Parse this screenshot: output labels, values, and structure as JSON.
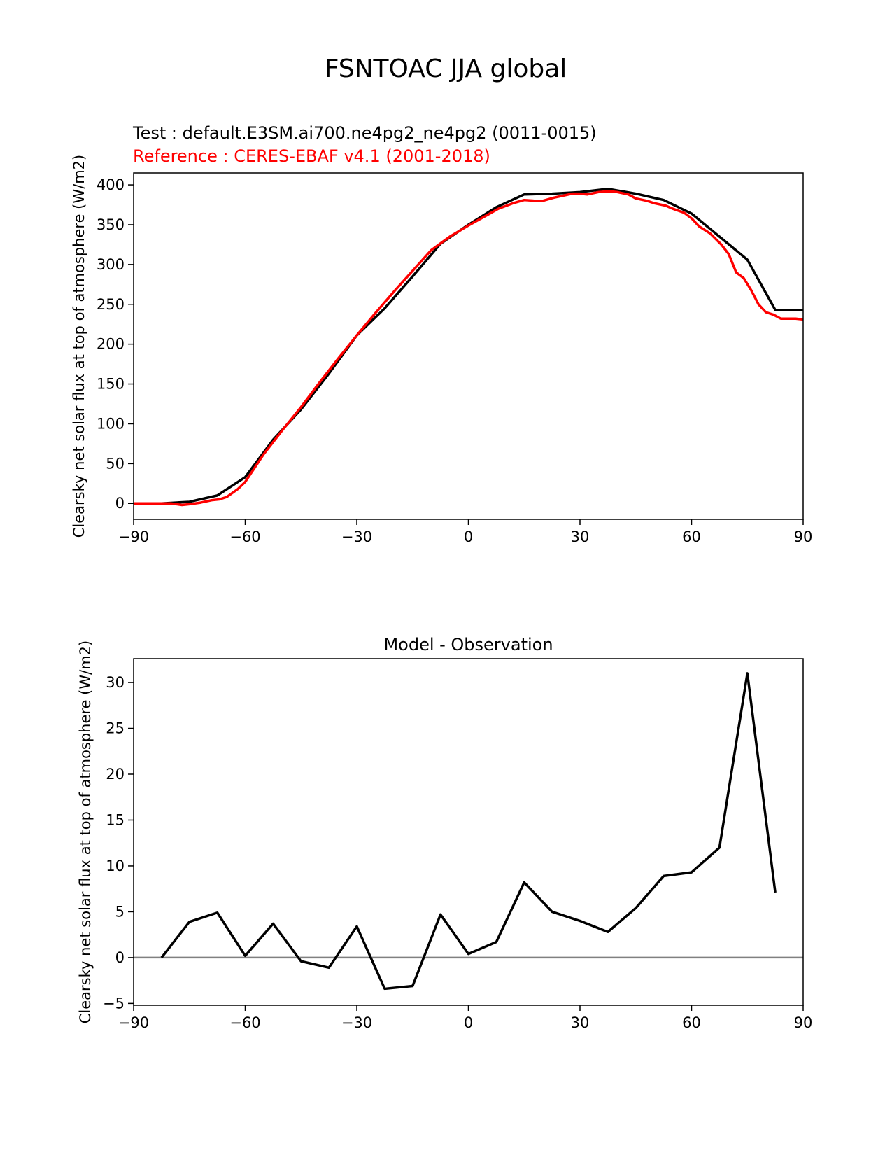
{
  "figure": {
    "title": "FSNTOAC JJA global",
    "test_label": "Test : default.E3SM.ai700.ne4pg2_ne4pg2 (0011-0015)",
    "reference_label": "Reference : CERES-EBAF v4.1 (2001-2018)"
  },
  "colors": {
    "test": "#000000",
    "reference": "#ff0000",
    "zero_line": "#808080"
  },
  "chart_data": [
    {
      "type": "line",
      "title": "",
      "xlabel": "",
      "ylabel": "Clearsky net solar flux at top of atmosphere (W/m2)",
      "xlim": [
        -90,
        90
      ],
      "ylim": [
        -20,
        415
      ],
      "xticks": [
        -90,
        -60,
        -30,
        0,
        30,
        60,
        90
      ],
      "xtick_labels": [
        "−90",
        "−60",
        "−30",
        "0",
        "30",
        "60",
        "90"
      ],
      "yticks": [
        0,
        50,
        100,
        150,
        200,
        250,
        300,
        350,
        400
      ],
      "yticks_labels": [
        "0",
        "50",
        "100",
        "150",
        "200",
        "250",
        "300",
        "350",
        "400"
      ],
      "series": [
        {
          "name": "Test",
          "color": "#000000",
          "x": [
            -90,
            -82.5,
            -75,
            -67.5,
            -60,
            -52.5,
            -45,
            -37.5,
            -30,
            -22.5,
            -15,
            -7.5,
            0,
            7.5,
            15,
            22.5,
            30,
            37.5,
            45,
            52.5,
            60,
            67.5,
            75,
            82.5,
            90
          ],
          "y": [
            0,
            0,
            2,
            10,
            33,
            80,
            118,
            163,
            211,
            245,
            285,
            326,
            350,
            372,
            388,
            389,
            391,
            395,
            389,
            381,
            364,
            335,
            306,
            243,
            243
          ]
        },
        {
          "name": "Reference",
          "color": "#ff0000",
          "x": [
            -90,
            -85,
            -80,
            -77,
            -75,
            -72,
            -69,
            -67,
            -65,
            -62,
            -60,
            -55,
            -50,
            -45,
            -40,
            -35,
            -30,
            -25,
            -20,
            -15,
            -10,
            -5,
            0,
            5,
            8,
            12,
            15,
            18,
            20,
            23,
            25,
            28,
            30,
            32,
            35,
            38,
            40,
            43,
            45,
            48,
            50,
            53,
            55,
            58,
            60,
            62,
            65,
            68,
            70,
            72,
            74,
            76,
            78,
            80,
            82,
            84,
            86,
            88,
            90
          ],
          "y": [
            0,
            0,
            0,
            -2,
            -1,
            1,
            4,
            5,
            8,
            18,
            27,
            62,
            92,
            121,
            152,
            182,
            211,
            239,
            266,
            292,
            318,
            335,
            349,
            362,
            370,
            377,
            381,
            380,
            380,
            384,
            386,
            389,
            389,
            388,
            391,
            392,
            391,
            388,
            383,
            380,
            377,
            374,
            370,
            365,
            358,
            348,
            339,
            325,
            313,
            290,
            283,
            268,
            250,
            240,
            237,
            232,
            232,
            232,
            231
          ]
        }
      ]
    },
    {
      "type": "line",
      "title": "Model - Observation",
      "xlabel": "",
      "ylabel": "Clearsky net solar flux at top of atmosphere (W/m2)",
      "xlim": [
        -90,
        90
      ],
      "ylim": [
        -5.2,
        32.6
      ],
      "xticks": [
        -90,
        -60,
        -30,
        0,
        30,
        60,
        90
      ],
      "xtick_labels": [
        "−90",
        "−60",
        "−30",
        "0",
        "30",
        "60",
        "90"
      ],
      "yticks": [
        -5,
        0,
        5,
        10,
        15,
        20,
        25,
        30
      ],
      "yticks_labels": [
        "−5",
        "0",
        "5",
        "10",
        "15",
        "20",
        "25",
        "30"
      ],
      "zero_line": true,
      "series": [
        {
          "name": "",
          "color": "#000000",
          "x": [
            -82.5,
            -75,
            -67.5,
            -60,
            -52.5,
            -45,
            -37.5,
            -30,
            -22.5,
            -15,
            -7.5,
            0,
            7.5,
            15,
            22.5,
            30,
            37.5,
            45,
            52.5,
            60,
            67.5,
            75,
            82.5
          ],
          "y": [
            0,
            3.9,
            4.9,
            0.2,
            3.7,
            -0.4,
            -1.1,
            3.4,
            -3.4,
            -3.1,
            4.7,
            0.4,
            1.7,
            8.2,
            5.0,
            4.0,
            2.8,
            5.4,
            8.9,
            9.3,
            12.0,
            31.0,
            7.1
          ]
        }
      ]
    }
  ]
}
